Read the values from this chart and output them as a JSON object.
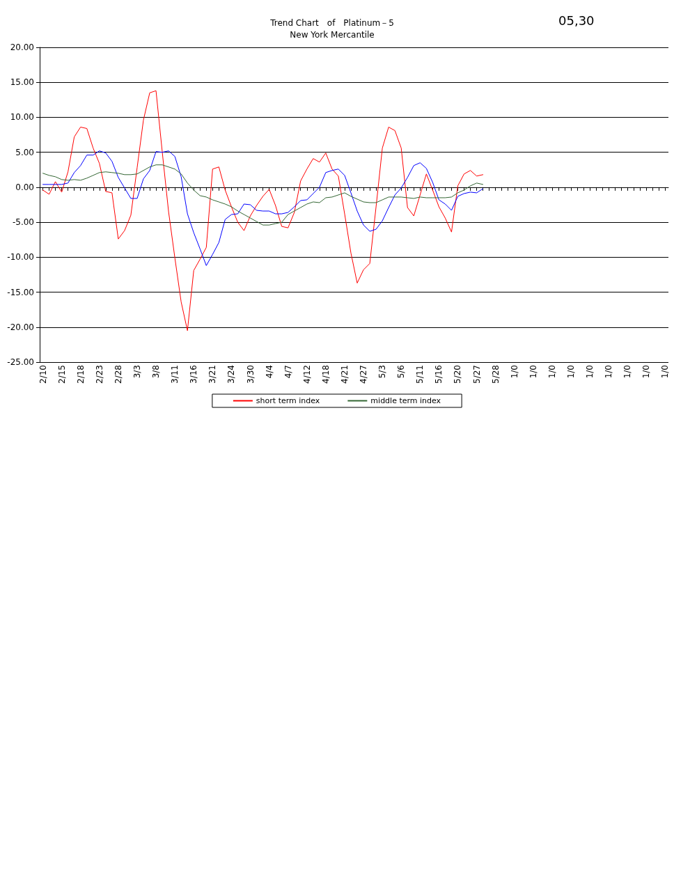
{
  "chart_data": {
    "type": "line",
    "title": "Trend Chart　of　Platinum－5",
    "subtitle": "New York Mercantile",
    "annotations": [
      "05,30"
    ],
    "categories": [
      "2/10",
      null,
      null,
      "2/15",
      null,
      null,
      "2/18",
      null,
      null,
      "2/23",
      null,
      null,
      "2/28",
      null,
      null,
      "3/3",
      null,
      null,
      "3/8",
      null,
      null,
      "3/11",
      null,
      null,
      "3/16",
      null,
      null,
      "3/21",
      null,
      null,
      "3/24",
      null,
      null,
      "3/30",
      null,
      null,
      "4/4",
      null,
      null,
      "4/7",
      null,
      null,
      "4/12",
      null,
      null,
      "4/18",
      null,
      null,
      "4/21",
      null,
      null,
      "4/27",
      null,
      null,
      "5/3",
      null,
      null,
      "5/6",
      null,
      null,
      "5/11",
      null,
      null,
      "5/16",
      null,
      null,
      "5/20",
      null,
      null,
      "5/27",
      null,
      null,
      "5/28",
      null,
      null,
      "1/0",
      null,
      null,
      "1/0",
      null,
      null,
      "1/0",
      null,
      null,
      "1/0",
      null,
      null,
      "1/0",
      null,
      null,
      "1/0",
      null,
      null,
      "1/0",
      null,
      null,
      "1/0",
      null,
      null,
      "1/0"
    ],
    "series": [
      {
        "name": "short term index",
        "color": "#ff0000",
        "values": [
          -0.4,
          -1.0,
          0.8,
          -0.7,
          2.2,
          7.2,
          8.6,
          8.4,
          5.6,
          3.4,
          -0.6,
          -0.8,
          -7.4,
          -6.2,
          -4.0,
          2.8,
          9.6,
          13.5,
          13.8,
          5.0,
          -3.5,
          -10.1,
          -16.4,
          -20.5,
          -11.9,
          -10.3,
          -8.6,
          2.6,
          2.9,
          -0.4,
          -2.8,
          -5.0,
          -6.2,
          -4.1,
          -2.6,
          -1.3,
          -0.3,
          -2.6,
          -5.6,
          -5.8,
          -3.6,
          0.9,
          2.6,
          4.1,
          3.6,
          4.9,
          2.6,
          1.6,
          -3.8,
          -9.4,
          -13.7,
          -11.8,
          -10.9,
          -2.8,
          5.6,
          8.6,
          8.1,
          5.6,
          -2.9,
          -4.1,
          -1.1,
          1.9,
          -0.4,
          -2.8,
          -4.4,
          -6.4,
          0.2,
          1.9,
          2.4,
          1.6,
          1.8,
          null,
          null,
          null,
          null,
          null,
          null,
          null,
          null,
          null,
          null,
          null,
          null,
          null,
          null,
          null,
          null,
          null,
          null,
          null,
          null,
          null,
          null,
          null,
          null,
          null,
          null,
          null,
          null,
          null
        ]
      },
      {
        "color": "#0000ff",
        "values": [
          0.4,
          0.4,
          0.4,
          0.4,
          0.6,
          2.1,
          3.1,
          4.6,
          4.6,
          5.2,
          4.9,
          3.7,
          1.4,
          -0.1,
          -1.6,
          -1.6,
          1.2,
          2.4,
          5.1,
          5.0,
          5.2,
          4.4,
          1.5,
          -3.8,
          -6.5,
          -8.8,
          -11.2,
          -9.6,
          -7.9,
          -4.6,
          -3.9,
          -3.8,
          -2.4,
          -2.5,
          -3.3,
          -3.4,
          -3.4,
          -3.8,
          -3.8,
          -3.6,
          -2.8,
          -1.9,
          -1.8,
          -0.9,
          0.0,
          2.1,
          2.4,
          2.6,
          1.7,
          -0.8,
          -3.4,
          -5.4,
          -6.3,
          -6.0,
          -4.8,
          -2.9,
          -1.1,
          -0.1,
          1.4,
          3.1,
          3.5,
          2.7,
          0.7,
          -1.8,
          -2.4,
          -3.3,
          -1.3,
          -0.9,
          -0.7,
          -0.8,
          -0.2,
          null,
          null,
          null,
          null,
          null,
          null,
          null,
          null,
          null,
          null,
          null,
          null,
          null,
          null,
          null,
          null,
          null,
          null,
          null,
          null,
          null,
          null,
          null,
          null,
          null,
          null,
          null,
          null,
          null
        ]
      },
      {
        "name": "middle term index",
        "color": "#336633",
        "values": [
          2.0,
          1.7,
          1.5,
          1.1,
          1.0,
          1.1,
          1.0,
          1.3,
          1.7,
          2.1,
          2.2,
          2.1,
          2.0,
          1.8,
          1.8,
          1.9,
          2.4,
          2.9,
          3.2,
          3.2,
          2.9,
          2.6,
          1.9,
          0.6,
          -0.4,
          -1.2,
          -1.4,
          -1.8,
          -2.1,
          -2.4,
          -2.8,
          -3.4,
          -3.9,
          -4.4,
          -4.9,
          -5.4,
          -5.4,
          -5.2,
          -5.0,
          -3.9,
          -3.4,
          -2.9,
          -2.4,
          -2.1,
          -2.2,
          -1.5,
          -1.4,
          -1.1,
          -0.8,
          -1.3,
          -1.7,
          -2.1,
          -2.2,
          -2.2,
          -1.8,
          -1.4,
          -1.4,
          -1.4,
          -1.5,
          -1.6,
          -1.4,
          -1.5,
          -1.5,
          -1.5,
          -1.5,
          -1.4,
          -0.8,
          -0.4,
          0.2,
          0.6,
          0.4,
          null,
          null,
          null,
          null,
          null,
          null,
          null,
          null,
          null,
          null,
          null,
          null,
          null,
          null,
          null,
          null,
          null,
          null,
          null,
          null,
          null,
          null,
          null,
          null,
          null,
          null,
          null,
          null,
          null
        ]
      }
    ],
    "ylim": [
      -25,
      20
    ],
    "yticks": [
      {
        "value": -25,
        "label": "-25.00"
      },
      {
        "value": -20,
        "label": "-20.00"
      },
      {
        "value": -15,
        "label": "-15.00"
      },
      {
        "value": -10,
        "label": "-10.00"
      },
      {
        "value": -5,
        "label": "-5.00"
      },
      {
        "value": 0,
        "label": "0.00"
      },
      {
        "value": 5,
        "label": "5.00"
      },
      {
        "value": 10,
        "label": "10.00"
      },
      {
        "value": 15,
        "label": "15.00"
      },
      {
        "value": 20,
        "label": "20.00"
      }
    ],
    "grid": "y",
    "legend": "bottom",
    "marker": "none",
    "line_style": "solid"
  }
}
